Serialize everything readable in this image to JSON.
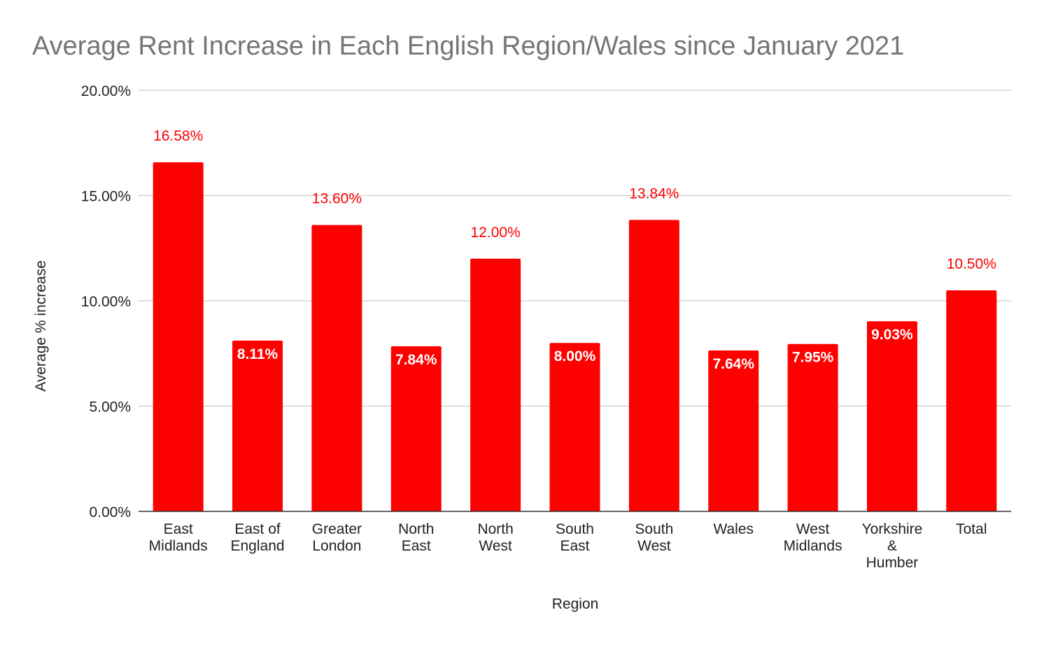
{
  "chart_data": {
    "type": "bar",
    "title": "Average Rent Increase in Each English Region/Wales since January 2021",
    "xlabel": "Region",
    "ylabel": "Average % increase",
    "ylim": [
      0,
      20
    ],
    "yticks": [
      "0.00%",
      "5.00%",
      "10.00%",
      "15.00%",
      "20.00%"
    ],
    "grid": true,
    "bar_color": "#ff0000",
    "categories": [
      [
        "East",
        "Midlands"
      ],
      [
        "East of",
        "England"
      ],
      [
        "Greater",
        "London"
      ],
      [
        "North",
        "East"
      ],
      [
        "North",
        "West"
      ],
      [
        "South",
        "East"
      ],
      [
        "South",
        "West"
      ],
      [
        "Wales"
      ],
      [
        "West",
        "Midlands"
      ],
      [
        "Yorkshire",
        "&",
        "Humber"
      ],
      [
        "Total"
      ]
    ],
    "values": [
      16.58,
      8.11,
      13.6,
      7.84,
      12.0,
      8.0,
      13.84,
      7.64,
      7.95,
      9.03,
      10.5
    ],
    "data_labels": [
      "16.58%",
      "8.11%",
      "13.60%",
      "7.84%",
      "12.00%",
      "8.00%",
      "13.84%",
      "7.64%",
      "7.95%",
      "9.03%",
      "10.50%"
    ],
    "label_inside": [
      false,
      true,
      false,
      true,
      false,
      true,
      false,
      true,
      true,
      true,
      false
    ]
  }
}
